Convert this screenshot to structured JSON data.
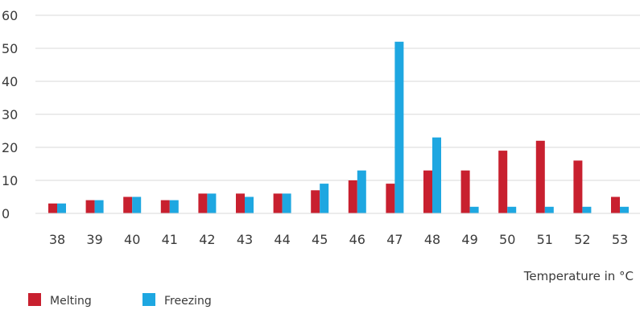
{
  "chart_data": {
    "type": "bar",
    "title": "",
    "xlabel": "Temperature in °C",
    "ylabel": "",
    "ylim": [
      0,
      60
    ],
    "yticks": [
      0,
      10,
      20,
      30,
      40,
      50,
      60
    ],
    "grid": true,
    "legend_position": "bottom-left",
    "categories": [
      "38",
      "39",
      "40",
      "41",
      "42",
      "43",
      "44",
      "45",
      "46",
      "47",
      "48",
      "49",
      "50",
      "51",
      "52",
      "53"
    ],
    "series": [
      {
        "name": "Melting",
        "color": "#c8202f",
        "values": [
          3,
          4,
          5,
          4,
          6,
          6,
          6,
          7,
          10,
          9,
          13,
          13,
          19,
          22,
          16,
          5
        ]
      },
      {
        "name": "Freezing",
        "color": "#1ea7e1",
        "values": [
          3,
          4,
          5,
          4,
          6,
          5,
          6,
          9,
          13,
          52,
          23,
          2,
          2,
          2,
          2,
          2
        ]
      }
    ]
  }
}
